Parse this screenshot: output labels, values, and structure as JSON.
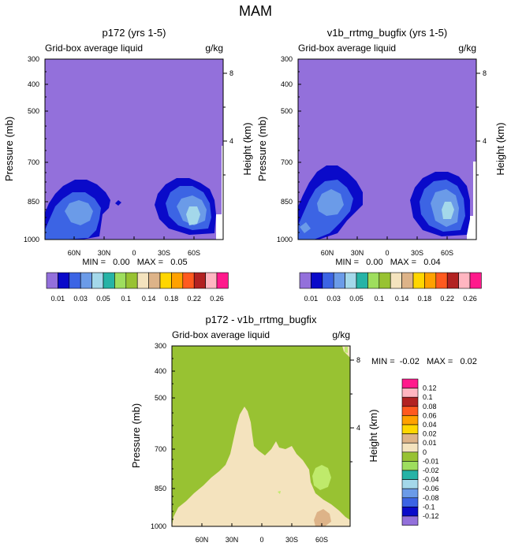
{
  "main_title": "MAM",
  "colors": {
    "field": "#9370db",
    "tan": "#f4e3be",
    "green": "#98c232",
    "light_green": "#bfea6b",
    "ramp": [
      "#9370db",
      "#0a0ac9",
      "#3c64e4",
      "#6b9be8",
      "#a4d8ea",
      "#26b3a6",
      "#9ede5e",
      "#98c232",
      "#f4e3be",
      "#ddb388",
      "#ffd600",
      "#ffa100",
      "#ff5a1f",
      "#b22222",
      "#ffb6c1",
      "#ff1a8c"
    ]
  },
  "chart_data": [
    {
      "type": "contour",
      "title": "p172 (yrs 1-5)",
      "left_label": "Grid-box average liquid",
      "units": "g/kg",
      "ylabel": "Pressure (mb)",
      "ylabel_right": "Height (km)",
      "pressure_ticks": [
        "300",
        "400",
        "500",
        "700",
        "850",
        "1000"
      ],
      "height_ticks": [
        "8",
        "4"
      ],
      "lat_ticks": [
        "60N",
        "30N",
        "0",
        "30S",
        "60S"
      ],
      "stats": "MIN =   0.00   MAX =   0.05",
      "colorbar_labels": [
        "0.01",
        "0.03",
        "0.05",
        "0.1",
        "0.14",
        "0.18",
        "0.22",
        "0.26"
      ]
    },
    {
      "type": "contour",
      "title": "v1b_rrtmg_bugfix (yrs 1-5)",
      "left_label": "Grid-box average liquid",
      "units": "g/kg",
      "ylabel": "Pressure (mb)",
      "ylabel_right": "Height (km)",
      "pressure_ticks": [
        "300",
        "400",
        "500",
        "700",
        "850",
        "1000"
      ],
      "height_ticks": [
        "8",
        "4"
      ],
      "lat_ticks": [
        "60N",
        "30N",
        "0",
        "30S",
        "60S"
      ],
      "stats": "MIN =   0.00   MAX =   0.04",
      "colorbar_labels": [
        "0.01",
        "0.03",
        "0.05",
        "0.1",
        "0.14",
        "0.18",
        "0.22",
        "0.26"
      ]
    },
    {
      "type": "contour",
      "title": "p172 - v1b_rrtmg_bugfix",
      "left_label": "Grid-box average liquid",
      "units": "g/kg",
      "ylabel": "Pressure (mb)",
      "ylabel_right": "Height (km)",
      "pressure_ticks": [
        "300",
        "400",
        "500",
        "700",
        "850",
        "1000"
      ],
      "height_ticks": [
        "8",
        "4"
      ],
      "lat_ticks": [
        "60N",
        "30N",
        "0",
        "30S",
        "60S"
      ],
      "stats": "MIN =  -0.02   MAX =   0.02",
      "colorbar_labels": [
        "0.12",
        "0.1",
        "0.08",
        "0.06",
        "0.04",
        "0.02",
        "0.01",
        "0",
        "-0.01",
        "-0.02",
        "-0.04",
        "-0.06",
        "-0.08",
        "-0.1",
        "-0.12"
      ]
    }
  ]
}
